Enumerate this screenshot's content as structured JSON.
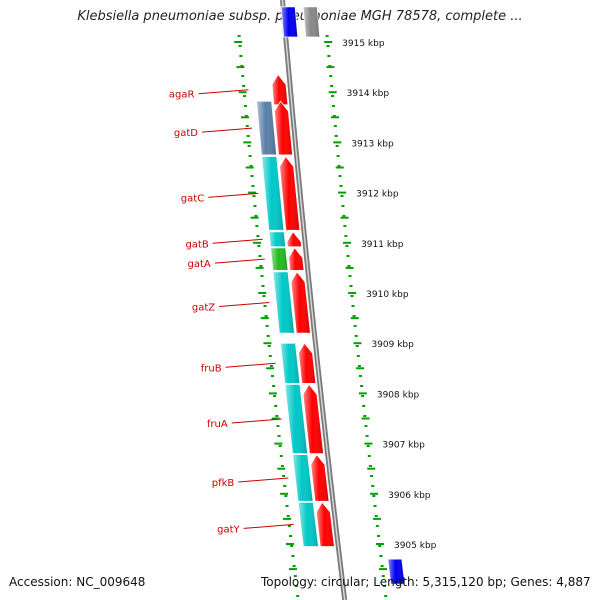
{
  "title": "Klebsiella pneumoniae subsp. pneumoniae MGH 78578, complete ...",
  "footer": {
    "accession": "Accession: NC_009648",
    "info": "Topology: circular; Length: 5,315,120 bp; Genes: 4,887"
  },
  "colors": {
    "forward_gene": "#ff0000",
    "cog_cyan": "#00c8c8",
    "cog_green": "#22bb22",
    "cog_steelblue": "#5a80a8",
    "cog_grey": "#888888",
    "cog_blue": "#0000ee",
    "tick": "#00a000",
    "label": "#cc0000",
    "backbone": "#909090"
  },
  "scale": {
    "unit": "kbp",
    "ticks": [
      {
        "value": 3915,
        "label": "3915 kbp"
      },
      {
        "value": 3914,
        "label": "3914 kbp"
      },
      {
        "value": 3913,
        "label": "3913 kbp"
      },
      {
        "value": 3912,
        "label": "3912 kbp"
      },
      {
        "value": 3911,
        "label": "3911 kbp"
      },
      {
        "value": 3910,
        "label": "3910 kbp"
      },
      {
        "value": 3909,
        "label": "3909 kbp"
      },
      {
        "value": 3908,
        "label": "3908 kbp"
      },
      {
        "value": 3907,
        "label": "3907 kbp"
      },
      {
        "value": 3906,
        "label": "3906 kbp"
      },
      {
        "value": 3905,
        "label": "3905 kbp"
      }
    ]
  },
  "genes": [
    {
      "name": "agaR",
      "start": 3913.75,
      "end": 3914.35,
      "strand": "forward"
    },
    {
      "name": "gatD",
      "start": 3912.75,
      "end": 3913.82,
      "strand": "forward"
    },
    {
      "name": "gatC",
      "start": 3911.25,
      "end": 3912.72,
      "strand": "forward"
    },
    {
      "name": "gatB",
      "start": 3910.92,
      "end": 3911.22,
      "strand": "forward"
    },
    {
      "name": "gatA",
      "start": 3910.45,
      "end": 3910.9,
      "strand": "forward"
    },
    {
      "name": "gatZ",
      "start": 3909.2,
      "end": 3910.42,
      "strand": "forward"
    },
    {
      "name": "fruB",
      "start": 3908.2,
      "end": 3909.0,
      "strand": "forward"
    },
    {
      "name": "fruA",
      "start": 3906.8,
      "end": 3908.18,
      "strand": "forward"
    },
    {
      "name": "pfkB",
      "start": 3905.85,
      "end": 3906.78,
      "strand": "forward"
    },
    {
      "name": "gatY",
      "start": 3904.95,
      "end": 3905.83,
      "strand": "forward"
    }
  ],
  "cog_blocks": [
    {
      "start": 3912.75,
      "end": 3913.82,
      "color": "cog_steelblue"
    },
    {
      "start": 3911.25,
      "end": 3912.72,
      "color": "cog_cyan"
    },
    {
      "start": 3910.92,
      "end": 3911.22,
      "color": "cog_cyan"
    },
    {
      "start": 3910.45,
      "end": 3910.9,
      "color": "cog_green"
    },
    {
      "start": 3909.2,
      "end": 3910.42,
      "color": "cog_cyan"
    },
    {
      "start": 3908.2,
      "end": 3909.0,
      "color": "cog_cyan"
    },
    {
      "start": 3906.8,
      "end": 3908.18,
      "color": "cog_cyan"
    },
    {
      "start": 3905.85,
      "end": 3906.78,
      "color": "cog_cyan"
    },
    {
      "start": 3904.95,
      "end": 3905.83,
      "color": "cog_cyan"
    }
  ],
  "offscreen_features": [
    {
      "strand": "forward",
      "start": 3915.1,
      "end": 3915.7,
      "color": "cog_blue"
    },
    {
      "strand": "reverse",
      "start": 3915.1,
      "end": 3915.7,
      "color": "cog_grey"
    },
    {
      "strand": "reverse",
      "start": 3904.2,
      "end": 3904.7,
      "color": "cog_blue"
    }
  ]
}
